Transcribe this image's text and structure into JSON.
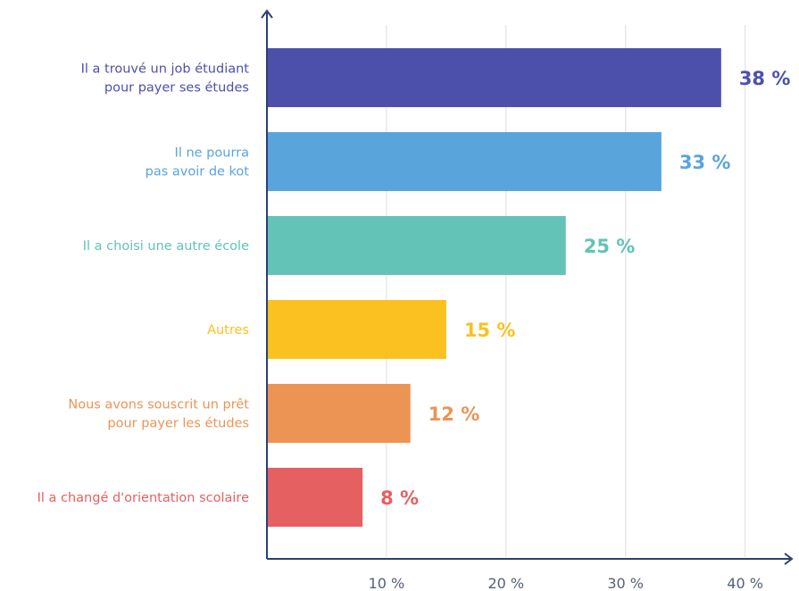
{
  "chart_data": {
    "type": "bar",
    "orientation": "horizontal",
    "title": "",
    "xlabel": "",
    "ylabel": "",
    "xlim": [
      0,
      40
    ],
    "ticks": [
      {
        "value": 10,
        "label": "10 %"
      },
      {
        "value": 20,
        "label": "20 %"
      },
      {
        "value": 30,
        "label": "30 %"
      },
      {
        "value": 40,
        "label": "40 %"
      }
    ],
    "grid": "vertical",
    "bars": [
      {
        "label_lines": [
          "Il a trouvé un job étudiant",
          "pour payer ses études"
        ],
        "value": 38,
        "value_label": "38 %",
        "color": "#4d50ab"
      },
      {
        "label_lines": [
          "Il ne pourra",
          "pas avoir de kot"
        ],
        "value": 33,
        "value_label": "33 %",
        "color": "#5aa4dc"
      },
      {
        "label_lines": [
          "Il a choisi une autre école"
        ],
        "value": 25,
        "value_label": "25 %",
        "color": "#62c3b6"
      },
      {
        "label_lines": [
          "Autres"
        ],
        "value": 15,
        "value_label": "15 %",
        "color": "#fbc120"
      },
      {
        "label_lines": [
          "Nous avons souscrit un prêt",
          "pour payer les études"
        ],
        "value": 12,
        "value_label": "12 %",
        "color": "#ec9454"
      },
      {
        "label_lines": [
          "Il a changé d'orientation scolaire"
        ],
        "value": 8,
        "value_label": "8 %",
        "color": "#e56061"
      }
    ]
  }
}
